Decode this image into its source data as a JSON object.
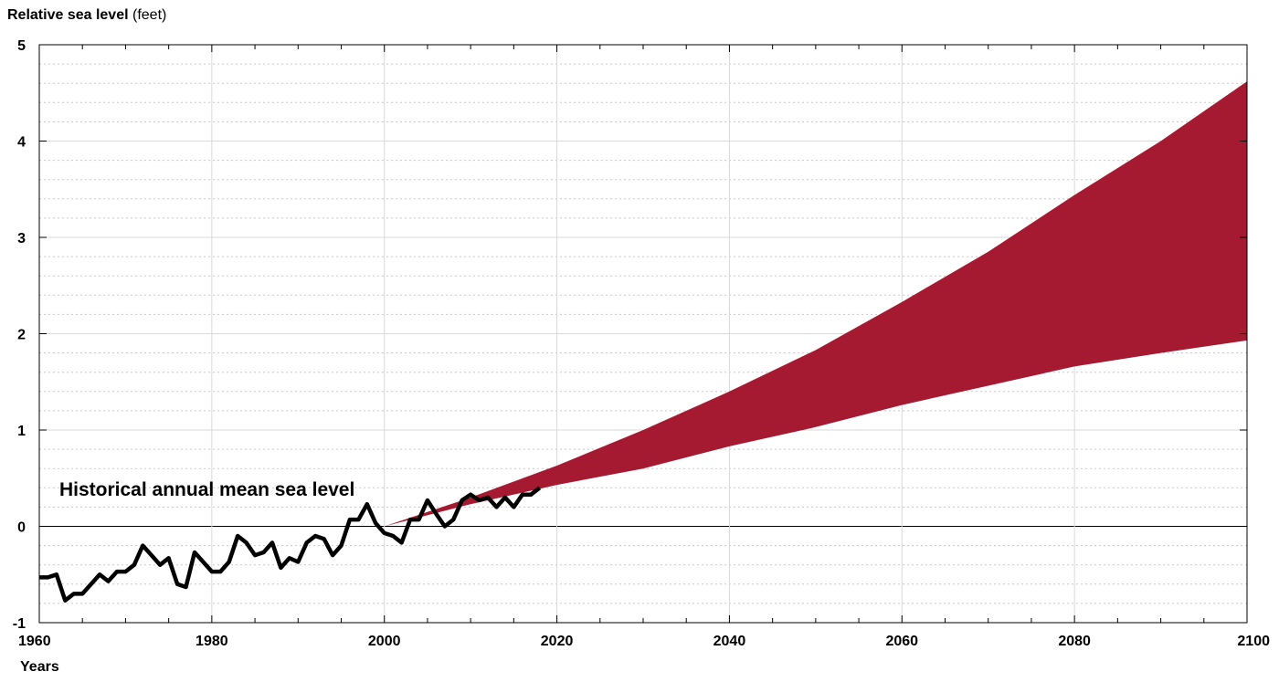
{
  "chart_data": {
    "type": "area",
    "ylabel_bold": "Relative sea level",
    "ylabel_unit": " (feet)",
    "xlabel": "Years",
    "xlim": [
      1960,
      2100
    ],
    "ylim": [
      -1,
      5
    ],
    "x_ticks": [
      1960,
      1980,
      2000,
      2020,
      2040,
      2060,
      2080,
      2100
    ],
    "y_ticks": [
      -1,
      0,
      1,
      2,
      3,
      4,
      5
    ],
    "annotation": "Historical annual mean sea level",
    "colors": {
      "projection_band": "#a51a31",
      "historical_line": "#000000",
      "grid_major": "#d9d9d9",
      "grid_minor": "#c8c8c8"
    },
    "series": [
      {
        "type": "line",
        "x": [
          1960,
          1961,
          1962,
          1963,
          1964,
          1965,
          1966,
          1967,
          1968,
          1969,
          1970,
          1971,
          1972,
          1973,
          1974,
          1975,
          1976,
          1977,
          1978,
          1979,
          1980,
          1981,
          1982,
          1983,
          1984,
          1985,
          1986,
          1987,
          1988,
          1989,
          1990,
          1991,
          1992,
          1993,
          1994,
          1995,
          1996,
          1997,
          1998,
          1999,
          2000,
          2001,
          2002,
          2003,
          2004,
          2005,
          2006,
          2007,
          2008,
          2009,
          2010,
          2011,
          2012,
          2013,
          2014,
          2015,
          2016,
          2017,
          2018
        ],
        "values": [
          -0.53,
          -0.53,
          -0.5,
          -0.77,
          -0.7,
          -0.7,
          -0.6,
          -0.5,
          -0.57,
          -0.47,
          -0.47,
          -0.4,
          -0.2,
          -0.3,
          -0.4,
          -0.33,
          -0.6,
          -0.63,
          -0.27,
          -0.37,
          -0.47,
          -0.47,
          -0.37,
          -0.1,
          -0.17,
          -0.3,
          -0.27,
          -0.17,
          -0.43,
          -0.33,
          -0.37,
          -0.17,
          -0.1,
          -0.13,
          -0.3,
          -0.2,
          0.07,
          0.07,
          0.23,
          0.03,
          -0.07,
          -0.1,
          -0.17,
          0.07,
          0.07,
          0.27,
          0.13,
          0.0,
          0.07,
          0.27,
          0.33,
          0.27,
          0.3,
          0.2,
          0.3,
          0.2,
          0.33,
          0.33,
          0.4
        ]
      },
      {
        "type": "band",
        "x": [
          2000,
          2010,
          2020,
          2030,
          2040,
          2050,
          2060,
          2070,
          2080,
          2090,
          2100
        ],
        "upper": [
          0.0,
          0.3,
          0.63,
          1.0,
          1.4,
          1.83,
          2.33,
          2.85,
          3.44,
          4.0,
          4.62
        ],
        "lower": [
          0.0,
          0.23,
          0.43,
          0.6,
          0.83,
          1.03,
          1.26,
          1.46,
          1.66,
          1.8,
          1.93
        ]
      }
    ]
  }
}
